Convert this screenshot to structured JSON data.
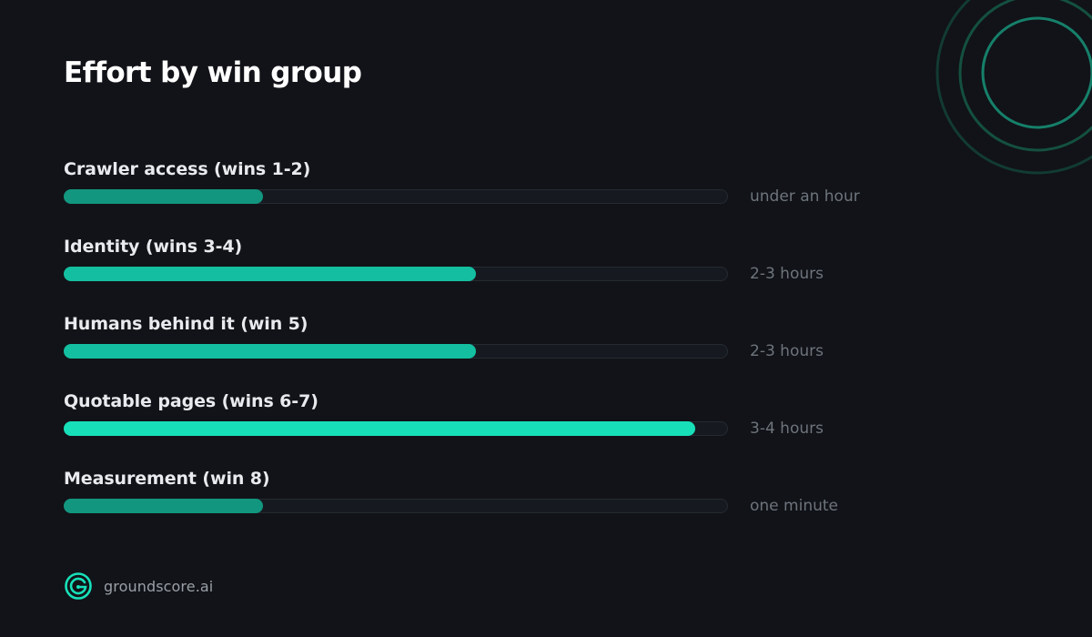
{
  "brand": {
    "name": "groundscore.ai",
    "icon": "groundscore-logo-icon"
  },
  "colors": {
    "background": "#111318",
    "track": "#161a20",
    "accent_bright": "#17e0b9",
    "accent_mid": "#13bfa0",
    "accent_dim": "#12967f",
    "muted_text": "#6e747c"
  },
  "chart_data": {
    "type": "bar",
    "orientation": "horizontal",
    "title": "Effort by win group",
    "categories": [
      "Crawler access (wins 1-2)",
      "Identity (wins 3-4)",
      "Humans behind it (win 5)",
      "Quotable pages (wins 6-7)",
      "Measurement (win 8)"
    ],
    "values": [
      0.3,
      0.62,
      0.62,
      0.95,
      0.3
    ],
    "value_labels": [
      "under an hour",
      "2-3 hours",
      "2-3 hours",
      "3-4 hours",
      "one minute"
    ],
    "bar_colors": [
      "#12967f",
      "#13bfa0",
      "#13bfa0",
      "#17e0b9",
      "#12967f"
    ],
    "xlim": [
      0,
      1
    ],
    "grid": false,
    "legend": "none"
  }
}
